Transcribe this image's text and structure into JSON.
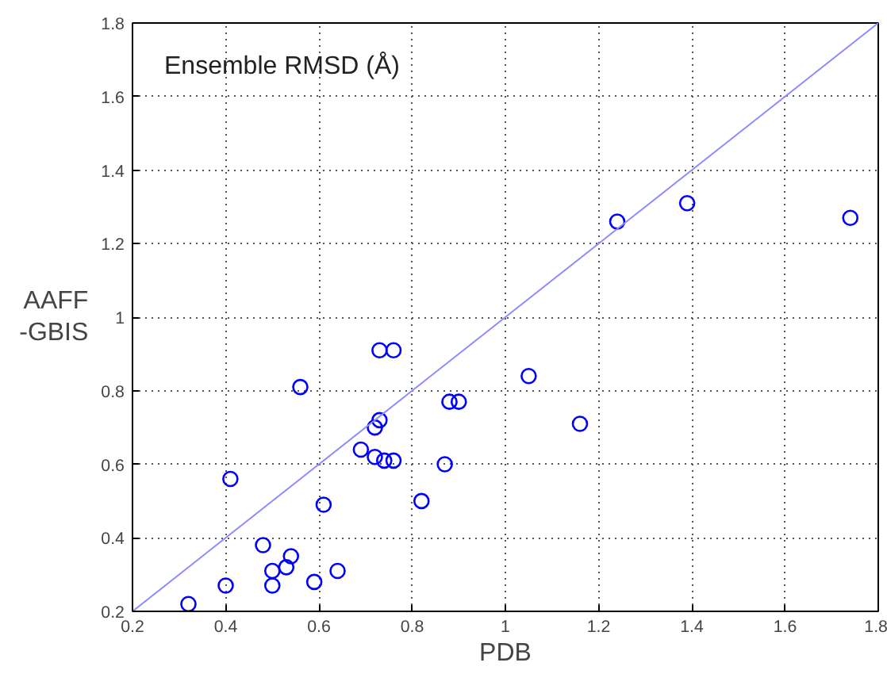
{
  "chart_data": {
    "type": "scatter",
    "title": "Ensemble RMSD (Å)",
    "xlabel": "PDB",
    "ylabel": "AAFF\n-GBIS",
    "xlim": [
      0.2,
      1.8
    ],
    "ylim": [
      0.2,
      1.8
    ],
    "xticks": [
      0.2,
      0.4,
      0.6,
      0.8,
      1,
      1.2,
      1.4,
      1.6,
      1.8
    ],
    "yticks": [
      0.2,
      0.4,
      0.6,
      0.8,
      1,
      1.2,
      1.4,
      1.6,
      1.8
    ],
    "grid": true,
    "series": [
      {
        "marker": "circle",
        "color": "#0000ff",
        "x": [
          0.32,
          0.4,
          0.41,
          0.48,
          0.5,
          0.5,
          0.53,
          0.54,
          0.56,
          0.59,
          0.61,
          0.64,
          0.69,
          0.72,
          0.72,
          0.73,
          0.73,
          0.74,
          0.76,
          0.76,
          0.82,
          0.87,
          0.88,
          0.9,
          1.05,
          1.16,
          1.24,
          1.39,
          1.74
        ],
        "values": [
          0.22,
          0.27,
          0.56,
          0.38,
          0.31,
          0.27,
          0.32,
          0.35,
          0.81,
          0.28,
          0.49,
          0.31,
          0.64,
          0.7,
          0.62,
          0.72,
          0.91,
          0.61,
          0.61,
          0.91,
          0.5,
          0.6,
          0.77,
          0.77,
          0.84,
          0.71,
          1.26,
          1.31,
          1.27
        ]
      },
      {
        "type": "line",
        "color": "#8c8cff",
        "x": [
          0.2,
          1.8
        ],
        "values": [
          0.2,
          1.8
        ]
      }
    ]
  }
}
